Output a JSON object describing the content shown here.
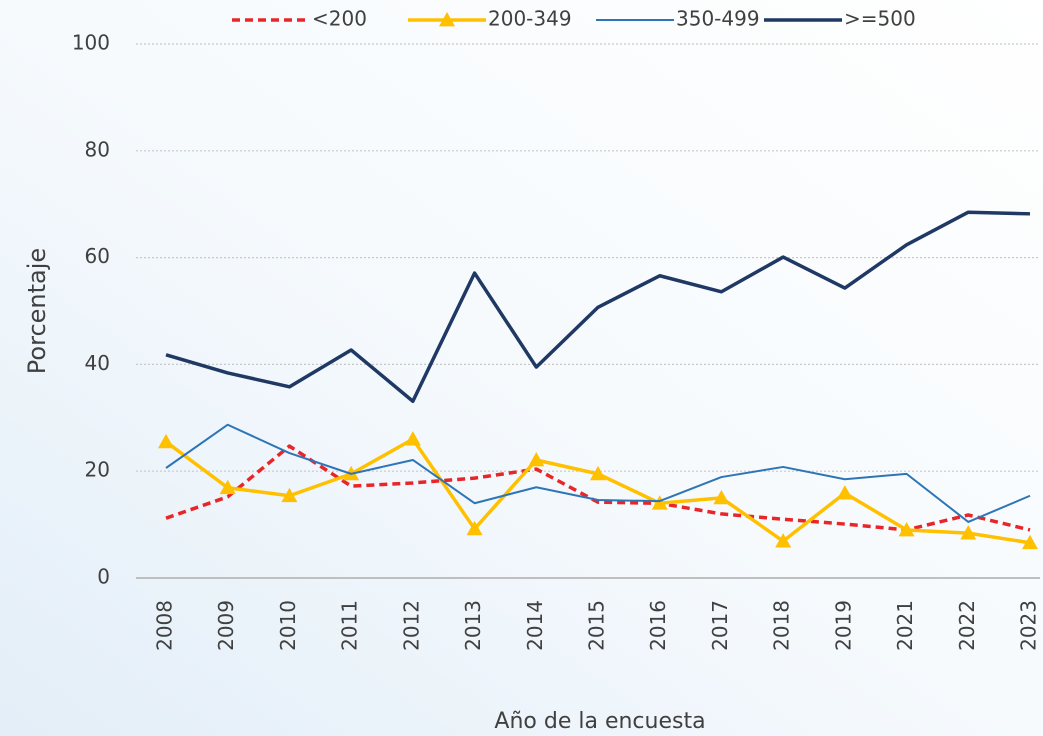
{
  "chart_data": {
    "type": "line",
    "x_label": "Año de la encuesta",
    "y_label": "Porcentaje",
    "categories": [
      "2008",
      "2009",
      "2010",
      "2011",
      "2012",
      "2013",
      "2014",
      "2015",
      "2016",
      "2017",
      "2018",
      "2019",
      "2021",
      "2022",
      "2023"
    ],
    "ylim": [
      0,
      100
    ],
    "yticks": [
      0,
      20,
      40,
      60,
      80,
      100
    ],
    "grid": true,
    "legend": "top",
    "series": [
      {
        "name": "<200",
        "color": "#e8262a",
        "dash": true,
        "marker": "none",
        "width": 3.5,
        "values": [
          11.2,
          15.2,
          24.7,
          17.2,
          17.8,
          18.7,
          20.4,
          14.2,
          14.0,
          12.0,
          11.0,
          10.1,
          9.0,
          11.8,
          9.0
        ]
      },
      {
        "name": "200-349",
        "color": "#ffc000",
        "dash": false,
        "marker": "triangle",
        "width": 3.5,
        "values": [
          25.5,
          16.9,
          15.4,
          19.5,
          26.0,
          9.2,
          22.1,
          19.5,
          14.0,
          15.0,
          6.9,
          15.9,
          9.0,
          8.4,
          6.6
        ]
      },
      {
        "name": "350-499",
        "color": "#2e75b6",
        "dash": false,
        "marker": "none",
        "width": 2,
        "values": [
          20.6,
          28.7,
          23.4,
          19.5,
          22.1,
          14.0,
          17.0,
          14.6,
          14.4,
          18.9,
          20.8,
          18.5,
          19.5,
          10.5,
          15.4
        ]
      },
      {
        "name": ">=500",
        "color": "#1f3864",
        "dash": false,
        "marker": "none",
        "width": 3.5,
        "values": [
          41.8,
          38.4,
          35.8,
          42.7,
          33.1,
          57.1,
          39.5,
          50.7,
          56.6,
          53.6,
          60.1,
          54.3,
          62.4,
          68.5,
          68.2
        ]
      }
    ]
  }
}
